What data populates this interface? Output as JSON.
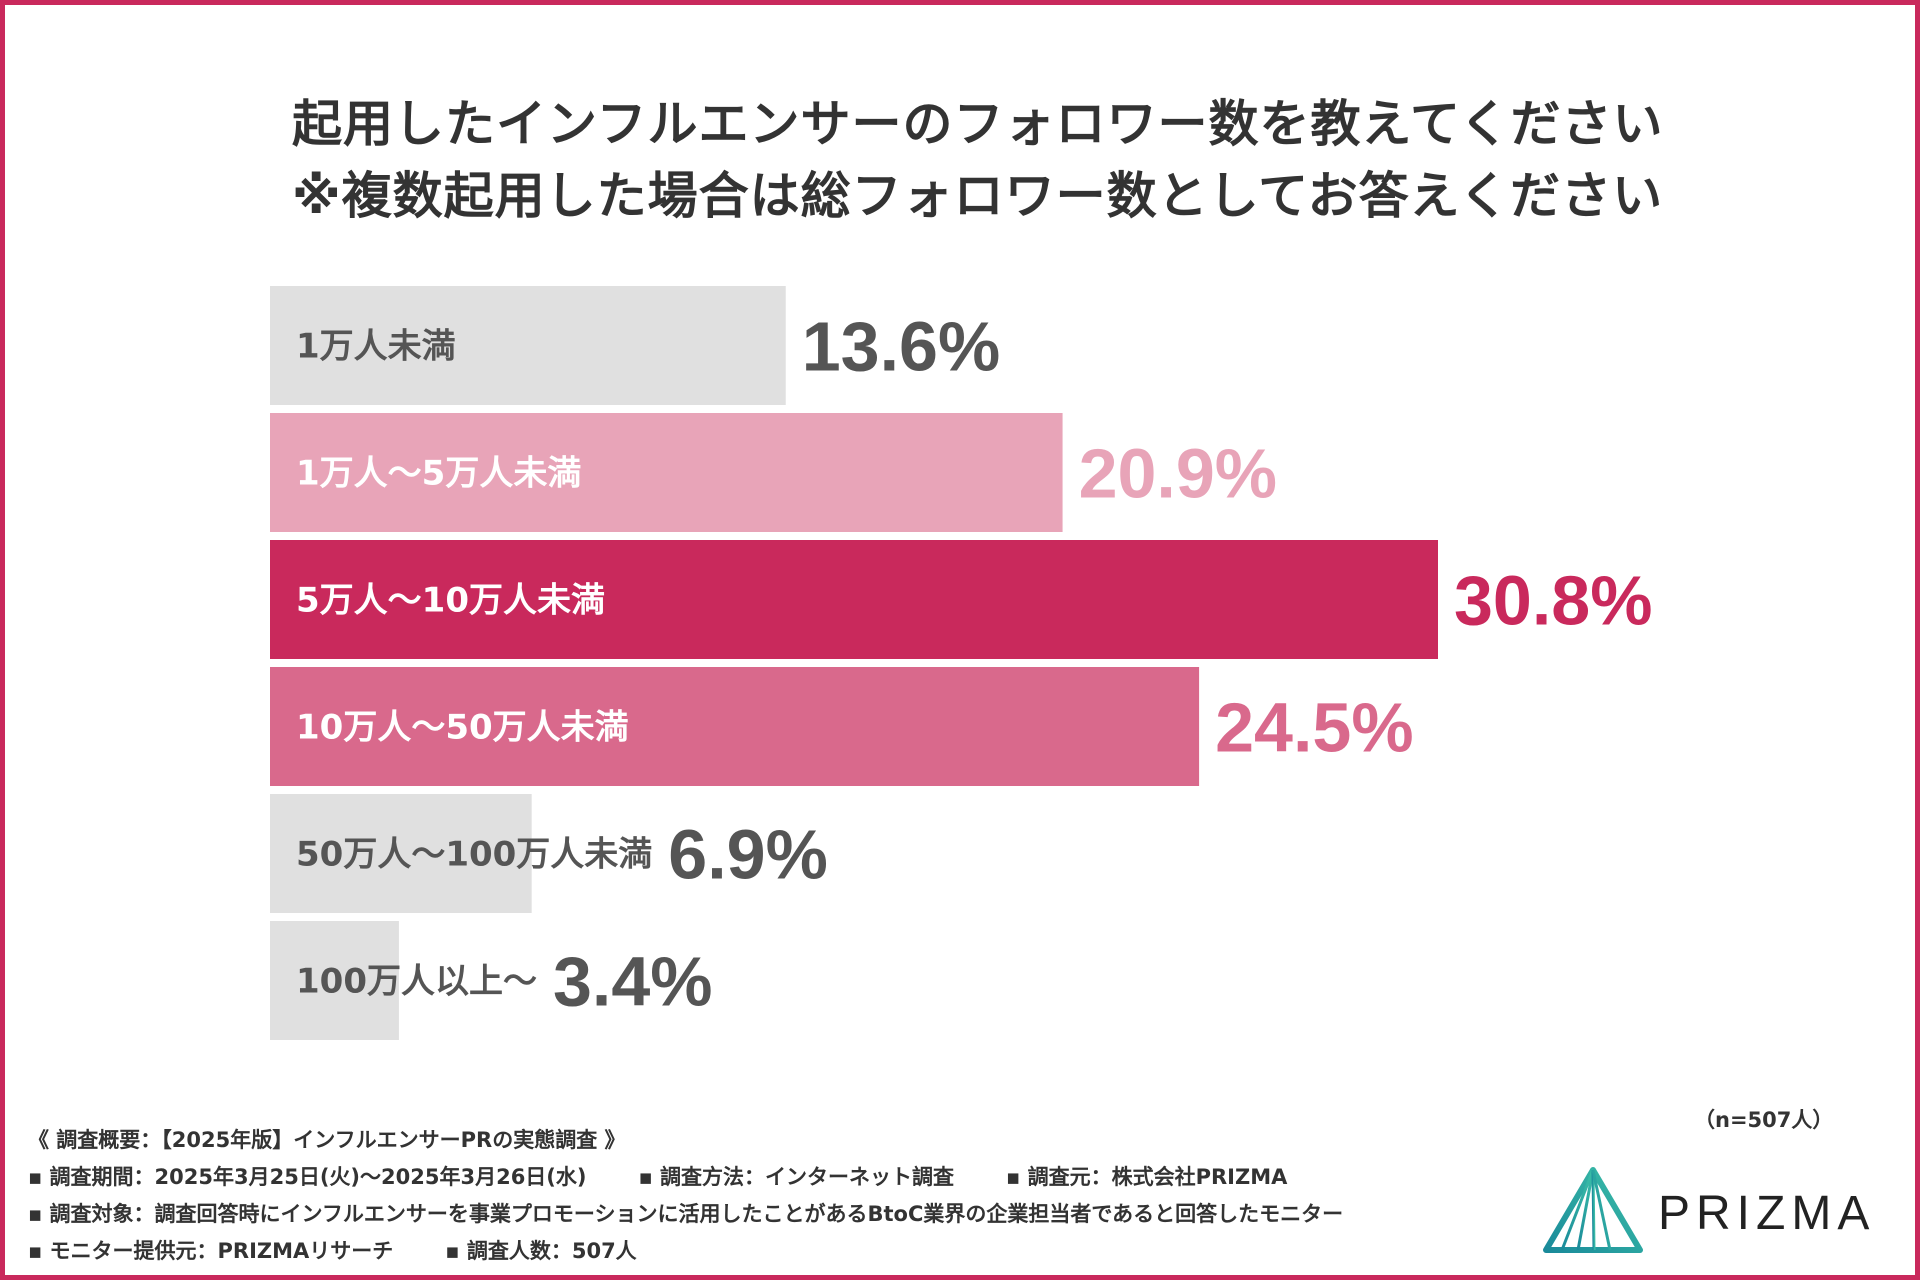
{
  "title_line1": "起用したインフルエンサーのフォロワー数を教えてください",
  "title_line2": "※複数起用した場合は総フォロワー数としてお答えください",
  "chart_data": {
    "type": "bar",
    "orientation": "horizontal",
    "categories": [
      "1万人未満",
      "1万人～5万人未満",
      "5万人～10万人未満",
      "10万人～50万人未満",
      "50万人～100万人未満",
      "100万人以上～"
    ],
    "values": [
      13.6,
      20.9,
      30.8,
      24.5,
      6.9,
      3.4
    ],
    "value_labels": [
      "13.6%",
      "20.9%",
      "30.8%",
      "24.5%",
      "6.9%",
      "3.4%"
    ],
    "xlim": [
      0,
      30.8
    ],
    "bar_colors": [
      "#e0e0e0",
      "#e8a4b8",
      "#c9295c",
      "#d9698c",
      "#e0e0e0",
      "#e0e0e0"
    ],
    "category_label_colors": [
      "#555555",
      "#ffffff",
      "#ffffff",
      "#ffffff",
      "#555555",
      "#555555"
    ],
    "value_label_colors": [
      "#555555",
      "#e8a4b8",
      "#c9295c",
      "#d9698c",
      "#555555",
      "#555555"
    ],
    "legend": "none",
    "grid": false
  },
  "sample_size": "（n=507人）",
  "footer": {
    "heading": "《 調査概要：【2025年版】インフルエンサーPRの実態調査 》",
    "period": "▪ 調査期間：2025年3月25日(火)～2025年3月26日(水)",
    "method": "▪ 調査方法：インターネット調査",
    "source": "▪ 調査元：株式会社PRIZMA",
    "target": "▪ 調査対象：調査回答時にインフルエンサーを事業プロモーションに活用したことがあるBtoC業界の企業担当者であると回答したモニター",
    "provider": "▪ モニター提供元：PRIZMAリサーチ",
    "count": "▪ 調査人数：507人"
  },
  "logo_text": "PRIZMA",
  "colors": {
    "accent": "#c9295c",
    "text": "#333333",
    "teal": "#1a8a9a"
  }
}
